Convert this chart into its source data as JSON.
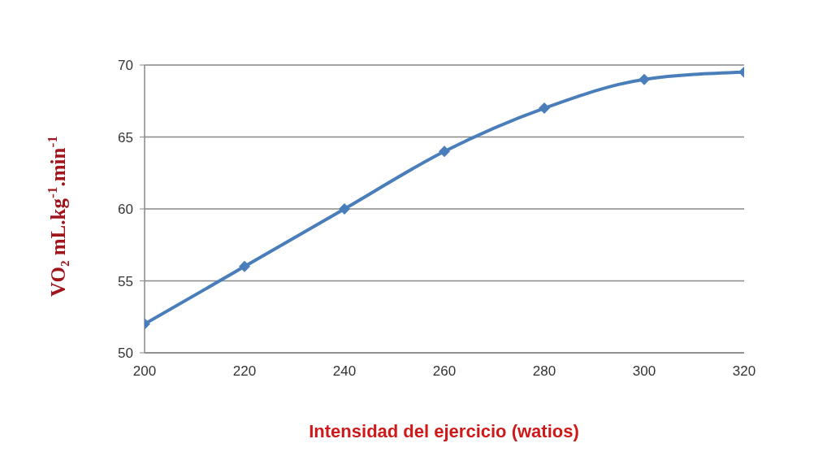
{
  "chart_data": {
    "type": "line",
    "xlabel": "Intensidad del ejercicio (watios)",
    "ylabel": "VO₂  mL.kg$^{-1}$.min$^{-1}$",
    "x": [
      200,
      220,
      240,
      260,
      280,
      300,
      320
    ],
    "series": [
      {
        "color": "#4a7ebb",
        "values": [
          52,
          56,
          60,
          64,
          67,
          69,
          69.5
        ]
      }
    ],
    "xlim": [
      200,
      320
    ],
    "xticks": [
      200,
      220,
      240,
      260,
      280,
      300,
      320
    ],
    "ylim": [
      50,
      70
    ],
    "yticks": [
      50,
      55,
      60,
      65,
      70
    ],
    "grid": "y",
    "marker": "diamond",
    "line_style": "solid"
  }
}
